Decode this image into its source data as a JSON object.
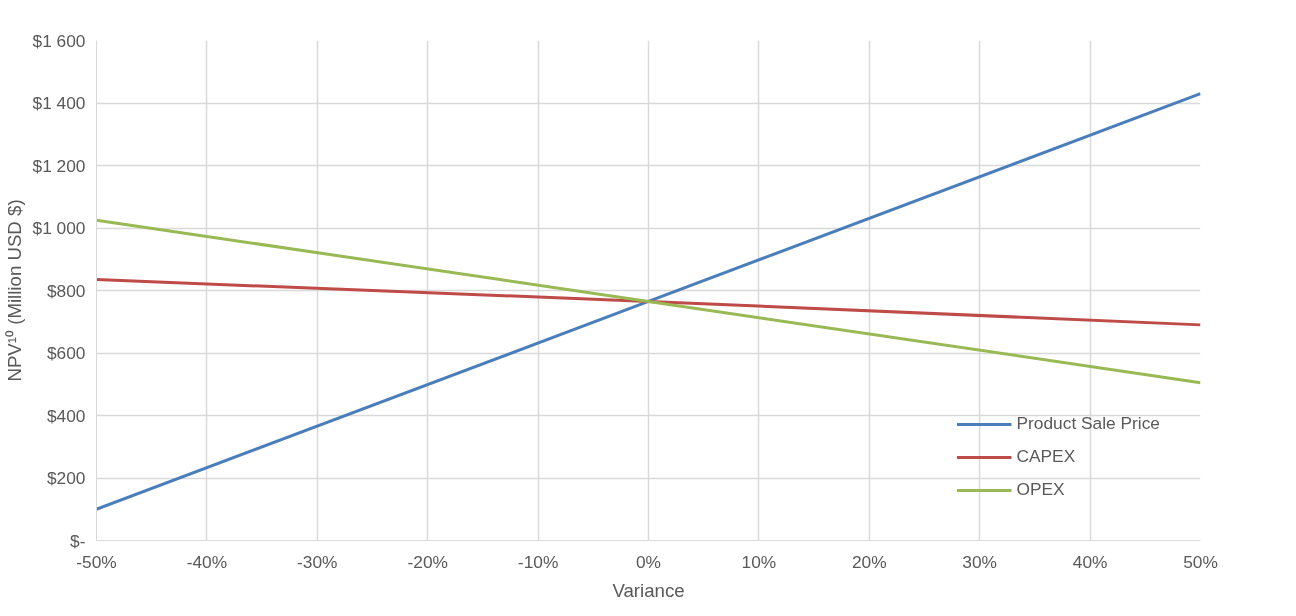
{
  "chart_data": {
    "type": "line",
    "xlabel": "Variance",
    "ylabel": "NPV¹⁰ (Million USD $)",
    "x": [
      -50,
      0,
      50
    ],
    "series": [
      {
        "name": "Product Sale Price",
        "color": "#4a7ebb",
        "values": [
          100,
          765,
          1430
        ]
      },
      {
        "name": "CAPEX",
        "color": "#be4b48",
        "values": [
          835,
          765,
          690
        ]
      },
      {
        "name": "OPEX",
        "color": "#98b954",
        "values": [
          1025,
          765,
          505
        ]
      }
    ],
    "xlim": [
      -50,
      50
    ],
    "xticks": [
      {
        "value": -50,
        "label": "-50%"
      },
      {
        "value": -40,
        "label": "-40%"
      },
      {
        "value": -30,
        "label": "-30%"
      },
      {
        "value": -20,
        "label": "-20%"
      },
      {
        "value": -10,
        "label": "-10%"
      },
      {
        "value": 0,
        "label": "0%"
      },
      {
        "value": 10,
        "label": "10%"
      },
      {
        "value": 20,
        "label": "20%"
      },
      {
        "value": 30,
        "label": "30%"
      },
      {
        "value": 40,
        "label": "40%"
      },
      {
        "value": 50,
        "label": "50%"
      }
    ],
    "ylim": [
      0,
      1600
    ],
    "yticks": [
      {
        "value": 0,
        "label": "$-"
      },
      {
        "value": 200,
        "label": "$200"
      },
      {
        "value": 400,
        "label": "$400"
      },
      {
        "value": 600,
        "label": "$600"
      },
      {
        "value": 800,
        "label": "$800"
      },
      {
        "value": 1000,
        "label": "$1 000"
      },
      {
        "value": 1200,
        "label": "$1 200"
      },
      {
        "value": 1400,
        "label": "$1 400"
      },
      {
        "value": 1600,
        "label": "$1 600"
      }
    ],
    "grid": true,
    "legend": "bottom right",
    "marker": "none",
    "line_style": "solid"
  }
}
